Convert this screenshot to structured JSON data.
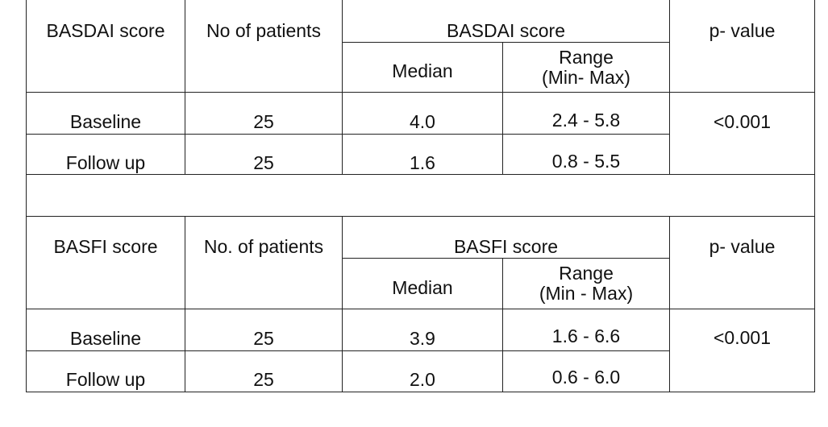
{
  "table1": {
    "headers": {
      "score": "BASDAI score",
      "patients": "No of patients",
      "group": "BASDAI score",
      "median": "Median",
      "range_line1": "Range",
      "range_line2": "(Min- Max)",
      "p": "p- value"
    },
    "rows": [
      {
        "label": "Baseline",
        "patients": "25",
        "median": "4.0",
        "range": "2.4 - 5.8"
      },
      {
        "label": "Follow up",
        "patients": "25",
        "median": "1.6",
        "range": "0.8 -  5.5"
      }
    ],
    "p_value": "<0.001"
  },
  "table2": {
    "headers": {
      "score": "BASFI score",
      "patients": "No. of patients",
      "group": "BASFI score",
      "median": "Median",
      "range_line1": "Range",
      "range_line2": "(Min - Max)",
      "p": "p- value"
    },
    "rows": [
      {
        "label": "Baseline",
        "patients": "25",
        "median": "3.9",
        "range": "1.6 -  6.6"
      },
      {
        "label": "Follow up",
        "patients": "25",
        "median": "2.0",
        "range": "0.6 -  6.0"
      }
    ],
    "p_value": "<0.001"
  }
}
